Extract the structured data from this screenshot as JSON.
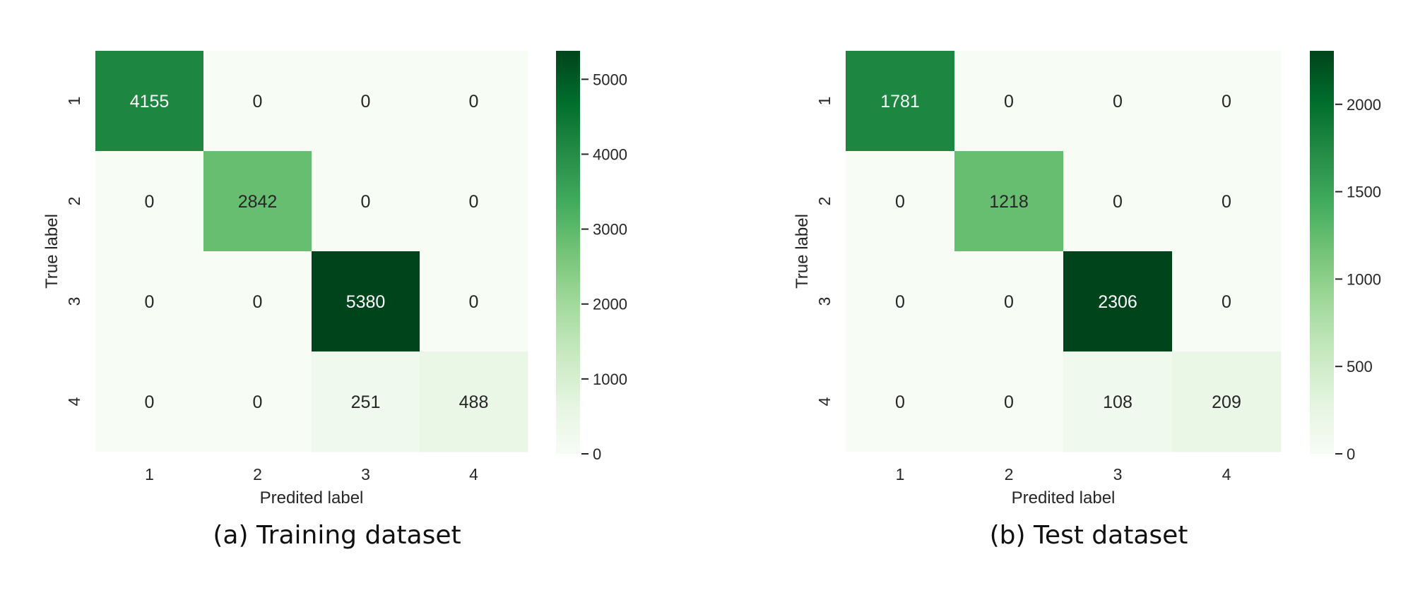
{
  "chart_data": [
    {
      "type": "heatmap",
      "caption": "(a) Training dataset",
      "xlabel": "Predited label",
      "ylabel": "True label",
      "x_categories": [
        "1",
        "2",
        "3",
        "4"
      ],
      "y_categories": [
        "1",
        "2",
        "3",
        "4"
      ],
      "matrix": [
        [
          4155,
          0,
          0,
          0
        ],
        [
          0,
          2842,
          0,
          0
        ],
        [
          0,
          0,
          5380,
          0
        ],
        [
          0,
          0,
          251,
          488
        ]
      ],
      "colorbar": {
        "min": 0,
        "max": 5380,
        "ticks": [
          0,
          1000,
          2000,
          3000,
          4000,
          5000
        ]
      },
      "colormap": "Greens",
      "colors": {
        "low": "#f7fcf5",
        "high": "#00441b"
      }
    },
    {
      "type": "heatmap",
      "caption": "(b) Test dataset",
      "xlabel": "Predited label",
      "ylabel": "True label",
      "x_categories": [
        "1",
        "2",
        "3",
        "4"
      ],
      "y_categories": [
        "1",
        "2",
        "3",
        "4"
      ],
      "matrix": [
        [
          1781,
          0,
          0,
          0
        ],
        [
          0,
          1218,
          0,
          0
        ],
        [
          0,
          0,
          2306,
          0
        ],
        [
          0,
          0,
          108,
          209
        ]
      ],
      "colorbar": {
        "min": 0,
        "max": 2306,
        "ticks": [
          0,
          500,
          1000,
          1500,
          2000
        ]
      },
      "colormap": "Greens",
      "colors": {
        "low": "#f7fcf5",
        "high": "#00441b"
      }
    }
  ]
}
